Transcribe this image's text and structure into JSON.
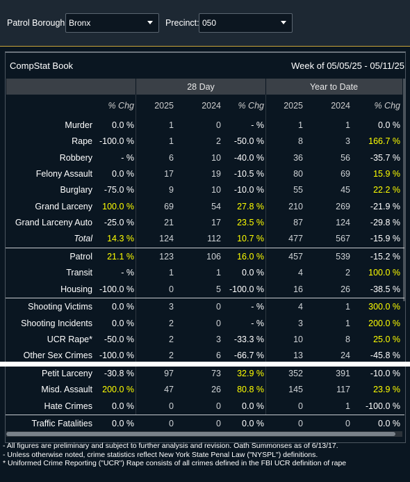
{
  "filters": {
    "borough_label": "Patrol Borough:",
    "borough": "Bronx",
    "precinct_label": "Precinct:",
    "precinct": "050"
  },
  "panel": {
    "title": "CompStat Book",
    "week": "Week of 05/05/25 - 05/11/25"
  },
  "table": {
    "groups": [
      "28 Day",
      "Year to Date"
    ],
    "columns": [
      "% Chg",
      "2025",
      "2024",
      "% Chg",
      "2025",
      "2024",
      "% Chg"
    ],
    "highlight_color": "#ffff00",
    "sections": [
      [
        {
          "label": "Murder",
          "cells": [
            "0.0 %",
            1,
            0,
            "- %",
            1,
            1,
            "0.0 %"
          ]
        },
        {
          "label": "Rape",
          "cells": [
            "-100.0 %",
            1,
            2,
            "-50.0 %",
            8,
            3,
            "166.7 %"
          ]
        },
        {
          "label": "Robbery",
          "cells": [
            "- %",
            6,
            10,
            "-40.0 %",
            36,
            56,
            "-35.7 %"
          ]
        },
        {
          "label": "Felony Assault",
          "cells": [
            "0.0 %",
            17,
            19,
            "-10.5 %",
            80,
            69,
            "15.9 %"
          ]
        },
        {
          "label": "Burglary",
          "cells": [
            "-75.0 %",
            9,
            10,
            "-10.0 %",
            55,
            45,
            "22.2 %"
          ]
        },
        {
          "label": "Grand Larceny",
          "cells": [
            "100.0 %",
            69,
            54,
            "27.8 %",
            210,
            269,
            "-21.9 %"
          ]
        },
        {
          "label": "Grand Larceny Auto",
          "cells": [
            "-25.0 %",
            21,
            17,
            "23.5 %",
            87,
            124,
            "-29.8 %"
          ]
        },
        {
          "label": "Total",
          "italic": true,
          "cells": [
            "14.3 %",
            124,
            112,
            "10.7 %",
            477,
            567,
            "-15.9 %"
          ]
        }
      ],
      [
        {
          "label": "Patrol",
          "cells": [
            "21.1 %",
            123,
            106,
            "16.0 %",
            457,
            539,
            "-15.2 %"
          ]
        },
        {
          "label": "Transit",
          "cells": [
            "- %",
            1,
            1,
            "0.0 %",
            4,
            2,
            "100.0 %"
          ]
        },
        {
          "label": "Housing",
          "cells": [
            "-100.0 %",
            0,
            5,
            "-100.0 %",
            16,
            26,
            "-38.5 %"
          ]
        }
      ],
      [
        {
          "label": "Shooting Victims",
          "cells": [
            "0.0 %",
            3,
            0,
            "- %",
            4,
            1,
            "300.0 %"
          ]
        },
        {
          "label": "Shooting Incidents",
          "cells": [
            "0.0 %",
            2,
            0,
            "- %",
            3,
            1,
            "200.0 %"
          ]
        },
        {
          "label": "UCR Rape*",
          "cells": [
            "-50.0 %",
            2,
            3,
            "-33.3 %",
            10,
            8,
            "25.0 %"
          ]
        },
        {
          "label": "Other Sex Crimes",
          "cells": [
            "-100.0 %",
            2,
            6,
            "-66.7 %",
            13,
            24,
            "-45.8 %"
          ]
        }
      ],
      [
        {
          "label": "Petit Larceny",
          "cells": [
            "-30.8 %",
            97,
            73,
            "32.9 %",
            352,
            391,
            "-10.0 %"
          ]
        },
        {
          "label": "Misd. Assault",
          "cells": [
            "200.0 %",
            47,
            26,
            "80.8 %",
            145,
            117,
            "23.9 %"
          ]
        },
        {
          "label": "Hate Crimes",
          "cells": [
            "0.0 %",
            0,
            0,
            "0.0 %",
            0,
            1,
            "-100.0 %"
          ]
        }
      ],
      [
        {
          "label": "Traffic Fatalities",
          "cells": [
            "0.0 %",
            0,
            0,
            "0.0 %",
            0,
            0,
            "0.0 %"
          ]
        }
      ]
    ]
  },
  "footnotes": [
    "- All figures are preliminary and subject to further analysis and revision. Oath Summonses as of 6/13/17.",
    "- Unless otherwise noted, crime statistics reflect New York State Penal Law (\"NYSPL\") definitions.",
    "* Uniformed Crime Reporting (\"UCR\") Rape consists of all crimes defined in the FBI UCR definition of rape"
  ]
}
